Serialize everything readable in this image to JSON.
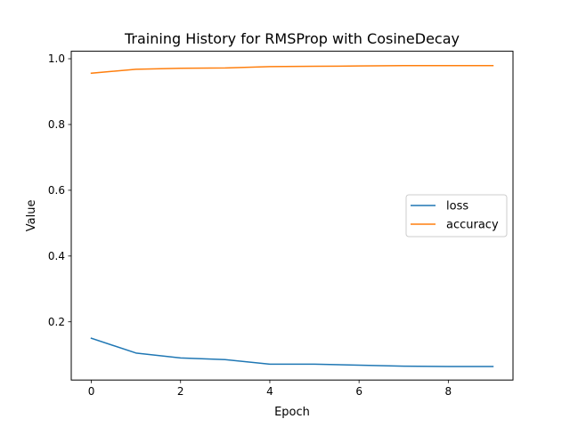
{
  "chart_data": {
    "type": "line",
    "title": "Training History for RMSProp with CosineDecay",
    "xlabel": "Epoch",
    "ylabel": "Value",
    "x": [
      0,
      1,
      2,
      3,
      4,
      5,
      6,
      7,
      8,
      9
    ],
    "xlim": [
      -0.45,
      9.45
    ],
    "ylim": [
      0.0229,
      1.0228
    ],
    "xticks": [
      0,
      2,
      4,
      6,
      8
    ],
    "xtick_labels": [
      "0",
      "2",
      "4",
      "6",
      "8"
    ],
    "yticks": [
      0.2,
      0.4,
      0.6,
      0.8,
      1.0
    ],
    "ytick_labels": [
      "0.2",
      "0.4",
      "0.6",
      "0.8",
      "1.0"
    ],
    "grid": false,
    "legend_position": "center-right",
    "series": [
      {
        "name": "loss",
        "color": "#1f77b4",
        "values": [
          0.15,
          0.105,
          0.09,
          0.085,
          0.071,
          0.071,
          0.068,
          0.065,
          0.064,
          0.064
        ]
      },
      {
        "name": "accuracy",
        "color": "#ff7f0e",
        "values": [
          0.956,
          0.968,
          0.971,
          0.972,
          0.976,
          0.977,
          0.978,
          0.979,
          0.979,
          0.979
        ]
      }
    ]
  }
}
